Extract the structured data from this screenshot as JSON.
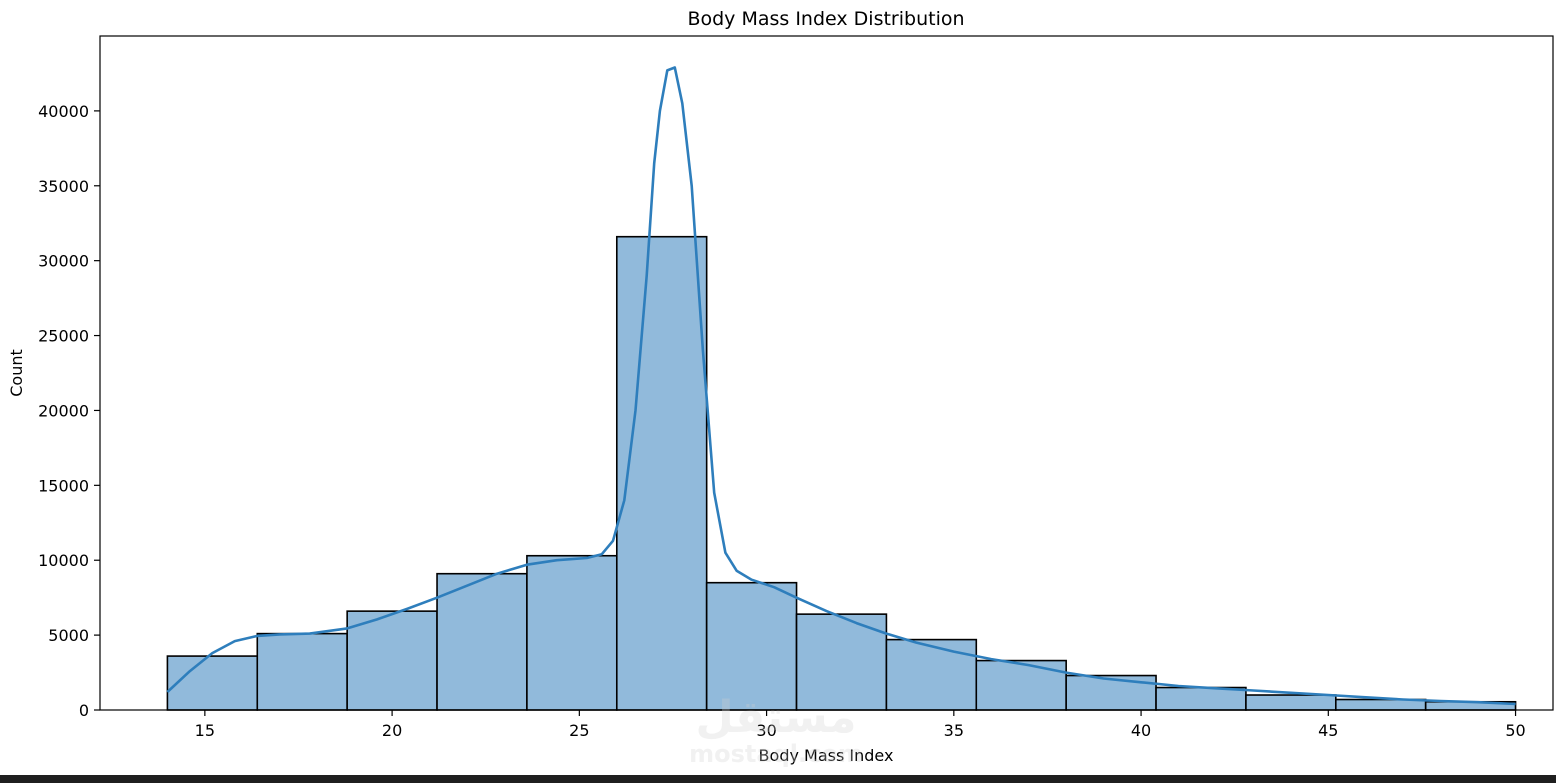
{
  "chart_data": {
    "type": "bar",
    "title": "Body Mass Index Distribution",
    "xlabel": "Body Mass Index",
    "ylabel": "Count",
    "xlim": [
      12.2,
      51
    ],
    "ylim": [
      0,
      45000
    ],
    "xticks": [
      15,
      20,
      25,
      30,
      35,
      40,
      45,
      50
    ],
    "yticks": [
      0,
      5000,
      10000,
      15000,
      20000,
      25000,
      30000,
      35000,
      40000
    ],
    "bin_edges": [
      14.0,
      16.4,
      18.8,
      21.2,
      23.6,
      26.0,
      28.4,
      30.8,
      33.2,
      35.6,
      38.0,
      40.4,
      42.8,
      45.2,
      47.6,
      50.0
    ],
    "values": [
      3600,
      5100,
      6600,
      9100,
      10300,
      31600,
      8500,
      6400,
      4700,
      3300,
      2300,
      1500,
      1000,
      700,
      550
    ],
    "kde": {
      "x": [
        14.0,
        14.6,
        15.2,
        15.8,
        16.4,
        17.0,
        17.8,
        18.8,
        19.6,
        20.4,
        21.2,
        22.0,
        22.8,
        23.6,
        24.4,
        25.2,
        25.6,
        25.9,
        26.2,
        26.5,
        26.8,
        27.0,
        27.15,
        27.35,
        27.55,
        27.75,
        28.0,
        28.3,
        28.6,
        28.9,
        29.2,
        29.6,
        30.2,
        30.8,
        31.6,
        32.4,
        33.2,
        34.0,
        35.0,
        36.0,
        37.0,
        38.0,
        39.0,
        40.0,
        41.0,
        42.0,
        43.0,
        44.0,
        45.0,
        46.0,
        47.0,
        48.0,
        49.0,
        50.0
      ],
      "y": [
        1200,
        2600,
        3800,
        4600,
        4950,
        5050,
        5100,
        5450,
        6050,
        6750,
        7500,
        8300,
        9100,
        9700,
        10000,
        10150,
        10400,
        11300,
        14000,
        20000,
        29000,
        36500,
        40000,
        42700,
        42900,
        40500,
        35000,
        24000,
        14500,
        10500,
        9300,
        8700,
        8200,
        7500,
        6600,
        5800,
        5100,
        4500,
        3900,
        3400,
        3000,
        2500,
        2100,
        1850,
        1600,
        1450,
        1300,
        1150,
        1000,
        850,
        700,
        600,
        520,
        400
      ]
    },
    "grid": false,
    "colors": {
      "bar_fill": "#91badb",
      "bar_edge": "#000000",
      "kde_line": "#2e7ebc"
    }
  },
  "watermark": {
    "arabic_text": "مستقل",
    "latin_text": "mostaql.com"
  }
}
